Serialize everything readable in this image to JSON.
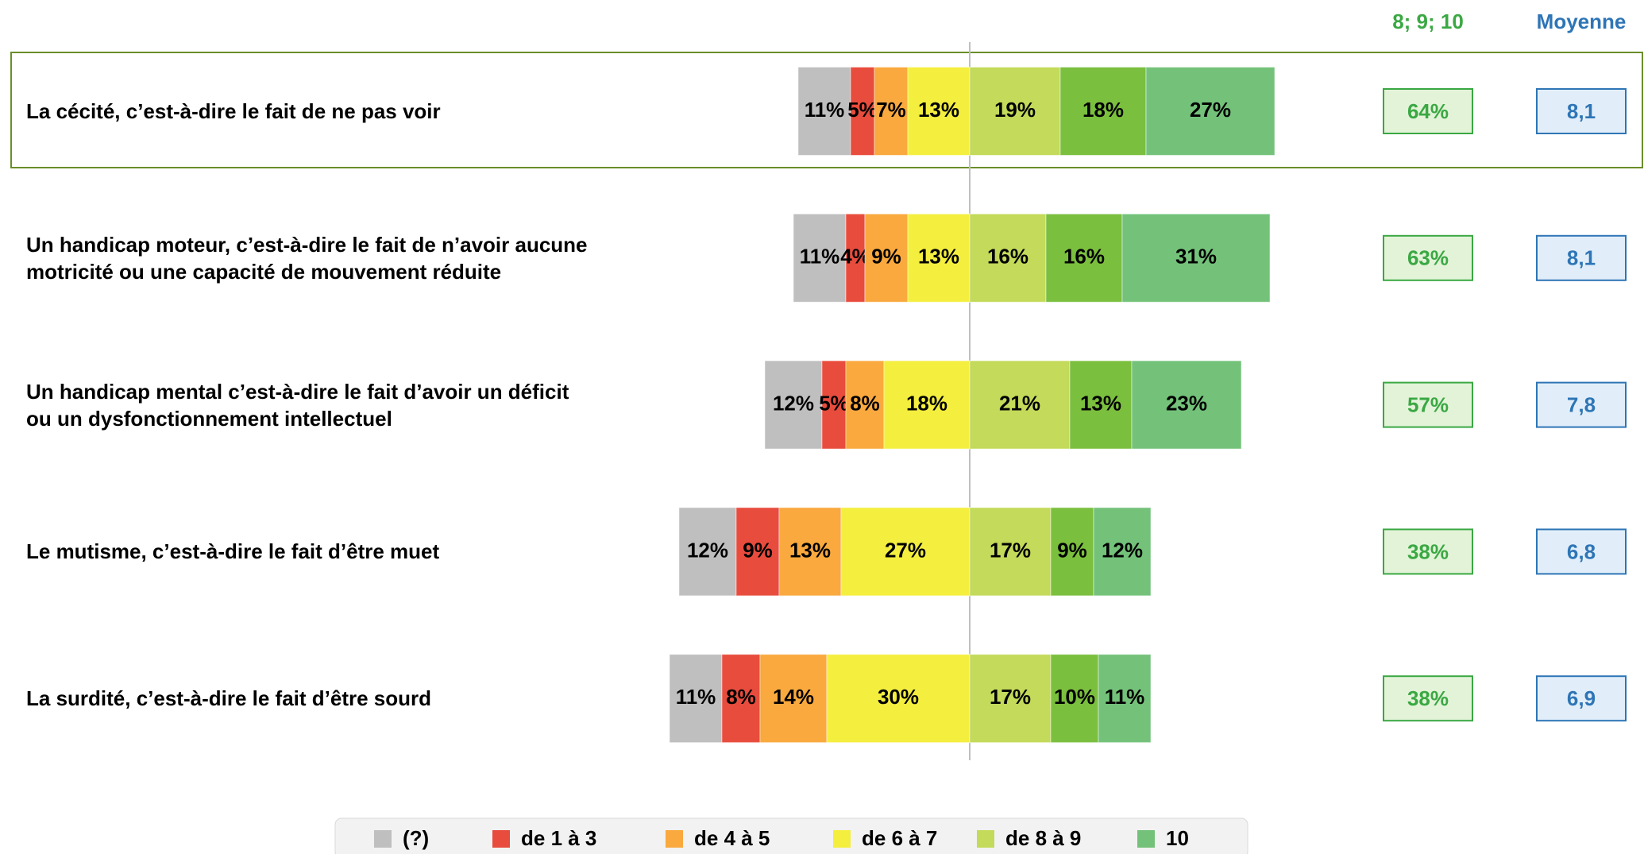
{
  "chart_data": {
    "type": "diverging_bar",
    "categories": [
      "La cécité, c’est-à-dire le fait de ne pas voir",
      "Un handicap moteur, c’est-à-dire le fait de n’avoir aucune motricité ou une capacité de mouvement réduite",
      "Un handicap mental c’est-à-dire le fait d’avoir un déficit ou un dysfonctionnement intellectuel",
      "Le mutisme, c’est-à-dire le fait d’être muet",
      "La surdité, c’est-à-dire le fait d’être sourd"
    ],
    "series": [
      {
        "name": "(?)",
        "color": "#bfbfbf",
        "values": [
          11,
          11,
          12,
          12,
          11
        ],
        "value_labels": [
          "11%",
          "11%",
          "12%",
          "12%",
          "11%"
        ]
      },
      {
        "name": "de 1 à 3",
        "color": "#e84c3d",
        "values": [
          5,
          4,
          5,
          9,
          8
        ],
        "value_labels": [
          "5%",
          "4%",
          "5%",
          "9%",
          "8%"
        ]
      },
      {
        "name": "de 4 à 5",
        "color": "#f9a93e",
        "values": [
          7,
          9,
          8,
          13,
          14
        ],
        "value_labels": [
          "7%",
          "9%",
          "8%",
          "13%",
          "14%"
        ]
      },
      {
        "name": "de 6 à 7",
        "color": "#f4ee3f",
        "values": [
          13,
          13,
          18,
          27,
          30
        ],
        "value_labels": [
          "13%",
          "13%",
          "18%",
          "27%",
          "30%"
        ]
      },
      {
        "name": "de 8 à 9",
        "color": "#c3da5a",
        "values": [
          19,
          16,
          21,
          17,
          17
        ],
        "value_labels": [
          "19%",
          "16%",
          "21%",
          "17%",
          "17%"
        ]
      },
      {
        "color": "#7bbf3e",
        "values": [
          18,
          16,
          13,
          9,
          10
        ],
        "value_labels": [
          "18%",
          "16%",
          "13%",
          "9%",
          "10%"
        ]
      },
      {
        "name": "10",
        "color": "#74c27a",
        "values": [
          27,
          31,
          23,
          12,
          11
        ],
        "value_labels": [
          "27%",
          "31%",
          "23%",
          "12%",
          "11%"
        ]
      }
    ],
    "diverge_after": 4,
    "top_box": {
      "title": "8; 9; 10",
      "color": "#3aa843",
      "values": [
        64,
        63,
        57,
        38,
        38
      ],
      "value_labels": [
        "64%",
        "63%",
        "57%",
        "38%",
        "38%"
      ]
    },
    "mean_box": {
      "title": "Moyenne",
      "color": "#2e75b6",
      "values": [
        8.1,
        8.1,
        7.8,
        6.8,
        6.9
      ],
      "value_labels": [
        "8,1",
        "8,1",
        "7,8",
        "6,8",
        "6,9"
      ]
    },
    "legend_position": "bottom"
  }
}
